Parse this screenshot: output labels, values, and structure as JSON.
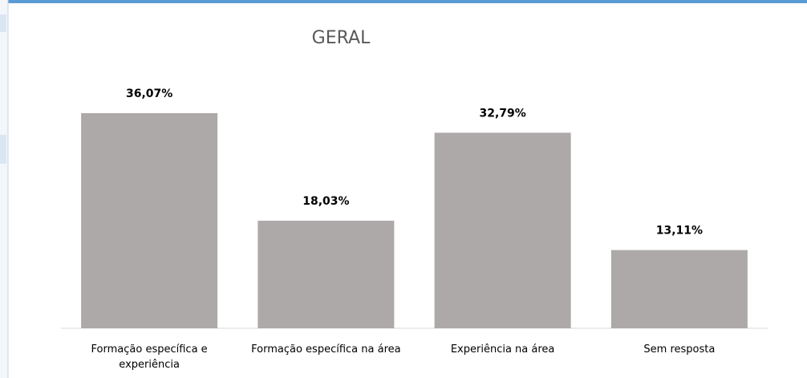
{
  "chart_data": {
    "type": "bar",
    "title": "GERAL",
    "categories": [
      "Formação específica e experiência",
      "Formação específica na área",
      "Experiência na área",
      "Sem resposta"
    ],
    "values": [
      36.07,
      18.03,
      32.79,
      13.11
    ],
    "value_labels": [
      "36,07%",
      "18,03%",
      "32,79%",
      "13,11%"
    ],
    "color": "#ada9a8"
  }
}
